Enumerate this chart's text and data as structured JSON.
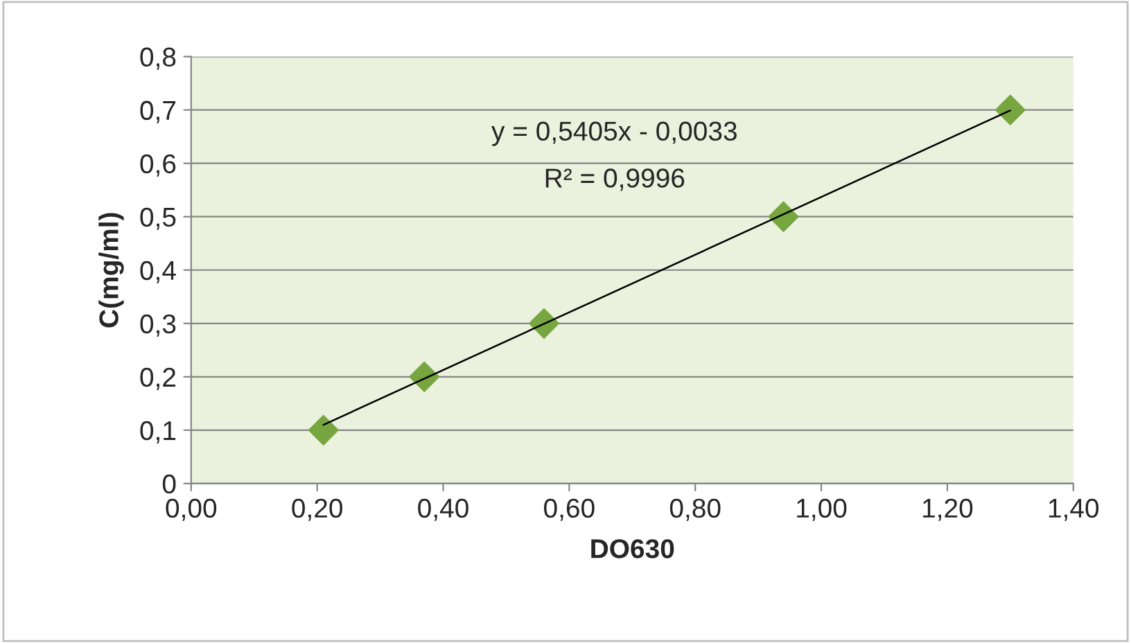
{
  "chart_data": {
    "type": "scatter",
    "xlabel": "DO630",
    "ylabel": "C(mg/ml)",
    "annotations": [
      "y = 0,5405x - 0,0033",
      "R² = 0,9996"
    ],
    "series": [
      {
        "color": "#77a641",
        "marker": "diamond",
        "x": [
          0.21,
          0.37,
          0.56,
          0.94,
          1.3
        ],
        "values": [
          0.1,
          0.2,
          0.3,
          0.5,
          0.7
        ]
      },
      {
        "type": "line",
        "color": "#000000",
        "marker": "none",
        "line_style": "solid",
        "x": [
          0.21,
          1.3
        ],
        "values": [
          0.11,
          0.699
        ]
      }
    ],
    "xlim": [
      0,
      1.4
    ],
    "ylim": [
      0,
      0.8
    ],
    "xticks": [
      {
        "value": 0,
        "label": "0,00"
      },
      {
        "value": 0.2,
        "label": "0,20"
      },
      {
        "value": 0.4,
        "label": "0,40"
      },
      {
        "value": 0.6,
        "label": "0,60"
      },
      {
        "value": 0.8,
        "label": "0,80"
      },
      {
        "value": 1.0,
        "label": "1,00"
      },
      {
        "value": 1.2,
        "label": "1,20"
      },
      {
        "value": 1.4,
        "label": "1,40"
      }
    ],
    "yticks": [
      0,
      {
        "value": 0.1,
        "label": "0,1"
      },
      {
        "value": 0.2,
        "label": "0,2"
      },
      {
        "value": 0.3,
        "label": "0,3"
      },
      {
        "value": 0.4,
        "label": "0,4"
      },
      {
        "value": 0.5,
        "label": "0,5"
      },
      {
        "value": 0.6,
        "label": "0,6"
      },
      {
        "value": 0.7,
        "label": "0,7"
      },
      {
        "value": 0.8,
        "label": "0,8"
      }
    ],
    "grid": "y"
  }
}
